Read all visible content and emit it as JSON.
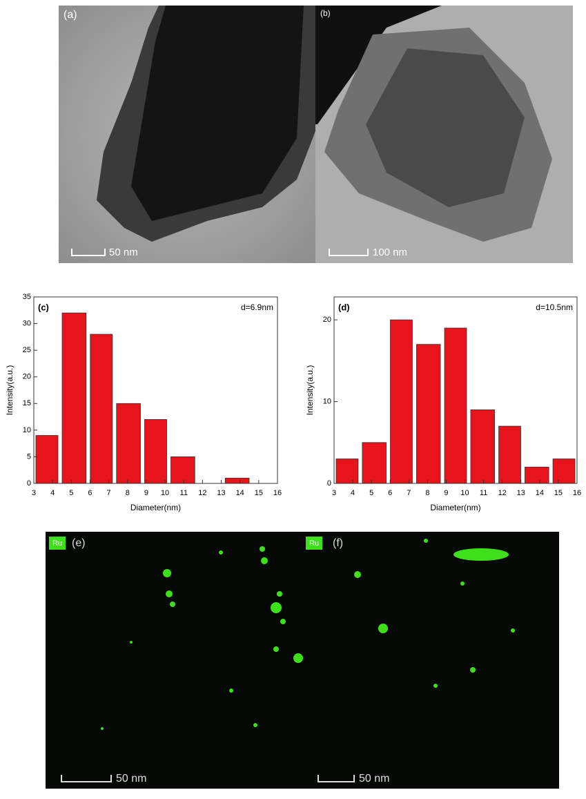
{
  "panels": [
    {
      "label": "(a)",
      "scale": "50 nm"
    },
    {
      "label": "(b)",
      "scale": "100 nm"
    },
    {
      "tag": "Ru",
      "label": "(e)",
      "scale": "50 nm"
    },
    {
      "tag": "Ru",
      "label": "(f)",
      "scale": "50 nm"
    }
  ],
  "chart_data": [
    {
      "type": "histogram",
      "title": "(c)",
      "annotation": "d=6.9nm",
      "x_label": "Diameter(nm)",
      "y_label": "Intensity(a.u.)",
      "bins": [
        3,
        4.4,
        5.9,
        7.3,
        8.8,
        10.2,
        11.7,
        13.1,
        14.6,
        16
      ],
      "values": [
        9,
        32,
        28,
        15,
        12,
        5,
        0,
        1,
        0
      ],
      "color": "#e8141b",
      "xlim": [
        3,
        16
      ],
      "xticks": [
        3,
        4,
        5,
        6,
        7,
        8,
        9,
        10,
        11,
        12,
        13,
        14,
        15,
        16
      ],
      "ylim": [
        0,
        35
      ],
      "yticks": [
        0,
        5,
        10,
        15,
        20,
        25,
        30,
        35
      ]
    },
    {
      "type": "histogram",
      "title": "(d)",
      "annotation": "d=10.5nm",
      "x_label": "Diameter(nm)",
      "y_label": "Intensity(a.u.)",
      "bins": [
        3,
        4.4,
        5.9,
        7.3,
        8.8,
        10.2,
        11.7,
        13.1,
        14.6,
        16
      ],
      "values": [
        3,
        5,
        20,
        17,
        19,
        9,
        7,
        2,
        3
      ],
      "color": "#e8141b",
      "xlim": [
        3,
        16
      ],
      "xticks": [
        3,
        4,
        5,
        6,
        7,
        8,
        9,
        10,
        11,
        12,
        13,
        14,
        15,
        16
      ],
      "ylim": [
        0,
        22.8
      ],
      "yticks": [
        0,
        10,
        20
      ]
    }
  ]
}
